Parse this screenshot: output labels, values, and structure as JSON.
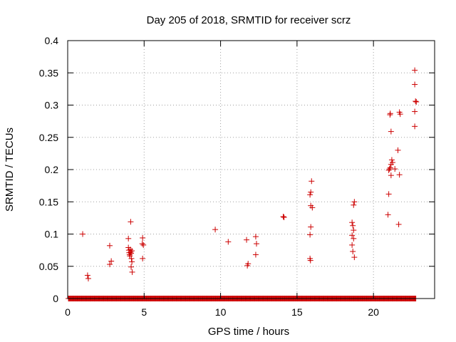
{
  "chart_data": {
    "type": "scatter",
    "title": "Day 205 of 2018, SRMTID for receiver scrz",
    "xlabel": "GPS time / hours",
    "ylabel": "SRMTID / TECUs",
    "xlim": [
      0,
      24
    ],
    "ylim": [
      0,
      0.4
    ],
    "grid": true,
    "x_ticks": [
      {
        "value": 0,
        "label": "0"
      },
      {
        "value": 5,
        "label": "5"
      },
      {
        "value": 10,
        "label": "10"
      },
      {
        "value": 15,
        "label": "15"
      },
      {
        "value": 20,
        "label": "20"
      }
    ],
    "y_ticks": [
      {
        "value": 0,
        "label": "0"
      },
      {
        "value": 0.05,
        "label": "0.05"
      },
      {
        "value": 0.1,
        "label": "0.1"
      },
      {
        "value": 0.15,
        "label": "0.15"
      },
      {
        "value": 0.2,
        "label": "0.2"
      },
      {
        "value": 0.25,
        "label": "0.25"
      },
      {
        "value": 0.3,
        "label": "0.3"
      },
      {
        "value": 0.35,
        "label": "0.35"
      },
      {
        "value": 0.4,
        "label": "0.4"
      }
    ],
    "marker": "+",
    "color": "#cc0000",
    "baseline_zero_range": [
      0.05,
      22.8
    ],
    "series": [
      {
        "name": "SRMTID",
        "points": [
          [
            0.98,
            0.1
          ],
          [
            1.3,
            0.036
          ],
          [
            1.35,
            0.031
          ],
          [
            2.75,
            0.082
          ],
          [
            2.75,
            0.053
          ],
          [
            2.85,
            0.058
          ],
          [
            3.97,
            0.093
          ],
          [
            3.97,
            0.079
          ],
          [
            4.0,
            0.075
          ],
          [
            4.02,
            0.071
          ],
          [
            4.05,
            0.068
          ],
          [
            4.07,
            0.066
          ],
          [
            4.1,
            0.076
          ],
          [
            4.12,
            0.072
          ],
          [
            4.15,
            0.07
          ],
          [
            4.17,
            0.062
          ],
          [
            4.12,
            0.119
          ],
          [
            4.2,
            0.057
          ],
          [
            4.15,
            0.049
          ],
          [
            4.22,
            0.041
          ],
          [
            4.2,
            0.074
          ],
          [
            4.9,
            0.094
          ],
          [
            4.88,
            0.085
          ],
          [
            4.95,
            0.083
          ],
          [
            4.9,
            0.062
          ],
          [
            9.65,
            0.107
          ],
          [
            10.5,
            0.088
          ],
          [
            11.7,
            0.091
          ],
          [
            11.8,
            0.054
          ],
          [
            11.75,
            0.051
          ],
          [
            12.3,
            0.096
          ],
          [
            12.35,
            0.085
          ],
          [
            12.3,
            0.068
          ],
          [
            14.1,
            0.127
          ],
          [
            14.15,
            0.126
          ],
          [
            15.95,
            0.182
          ],
          [
            15.9,
            0.165
          ],
          [
            15.85,
            0.161
          ],
          [
            15.9,
            0.144
          ],
          [
            16.0,
            0.141
          ],
          [
            15.9,
            0.111
          ],
          [
            15.85,
            0.099
          ],
          [
            15.85,
            0.062
          ],
          [
            15.88,
            0.059
          ],
          [
            18.6,
            0.118
          ],
          [
            18.65,
            0.113
          ],
          [
            18.7,
            0.106
          ],
          [
            18.6,
            0.098
          ],
          [
            18.7,
            0.093
          ],
          [
            18.6,
            0.083
          ],
          [
            18.65,
            0.073
          ],
          [
            18.75,
            0.064
          ],
          [
            18.75,
            0.15
          ],
          [
            18.7,
            0.145
          ],
          [
            20.95,
            0.13
          ],
          [
            21.0,
            0.162
          ],
          [
            21.05,
            0.201
          ],
          [
            21.1,
            0.203
          ],
          [
            21.0,
            0.199
          ],
          [
            21.15,
            0.208
          ],
          [
            21.2,
            0.215
          ],
          [
            21.25,
            0.211
          ],
          [
            21.4,
            0.201
          ],
          [
            21.15,
            0.191
          ],
          [
            21.6,
            0.23
          ],
          [
            21.7,
            0.192
          ],
          [
            21.65,
            0.115
          ],
          [
            21.1,
            0.287
          ],
          [
            21.08,
            0.285
          ],
          [
            21.15,
            0.259
          ],
          [
            21.7,
            0.289
          ],
          [
            21.75,
            0.286
          ],
          [
            22.7,
            0.354
          ],
          [
            22.7,
            0.332
          ],
          [
            22.75,
            0.306
          ],
          [
            22.8,
            0.305
          ],
          [
            22.7,
            0.29
          ],
          [
            22.7,
            0.267
          ]
        ]
      }
    ]
  }
}
